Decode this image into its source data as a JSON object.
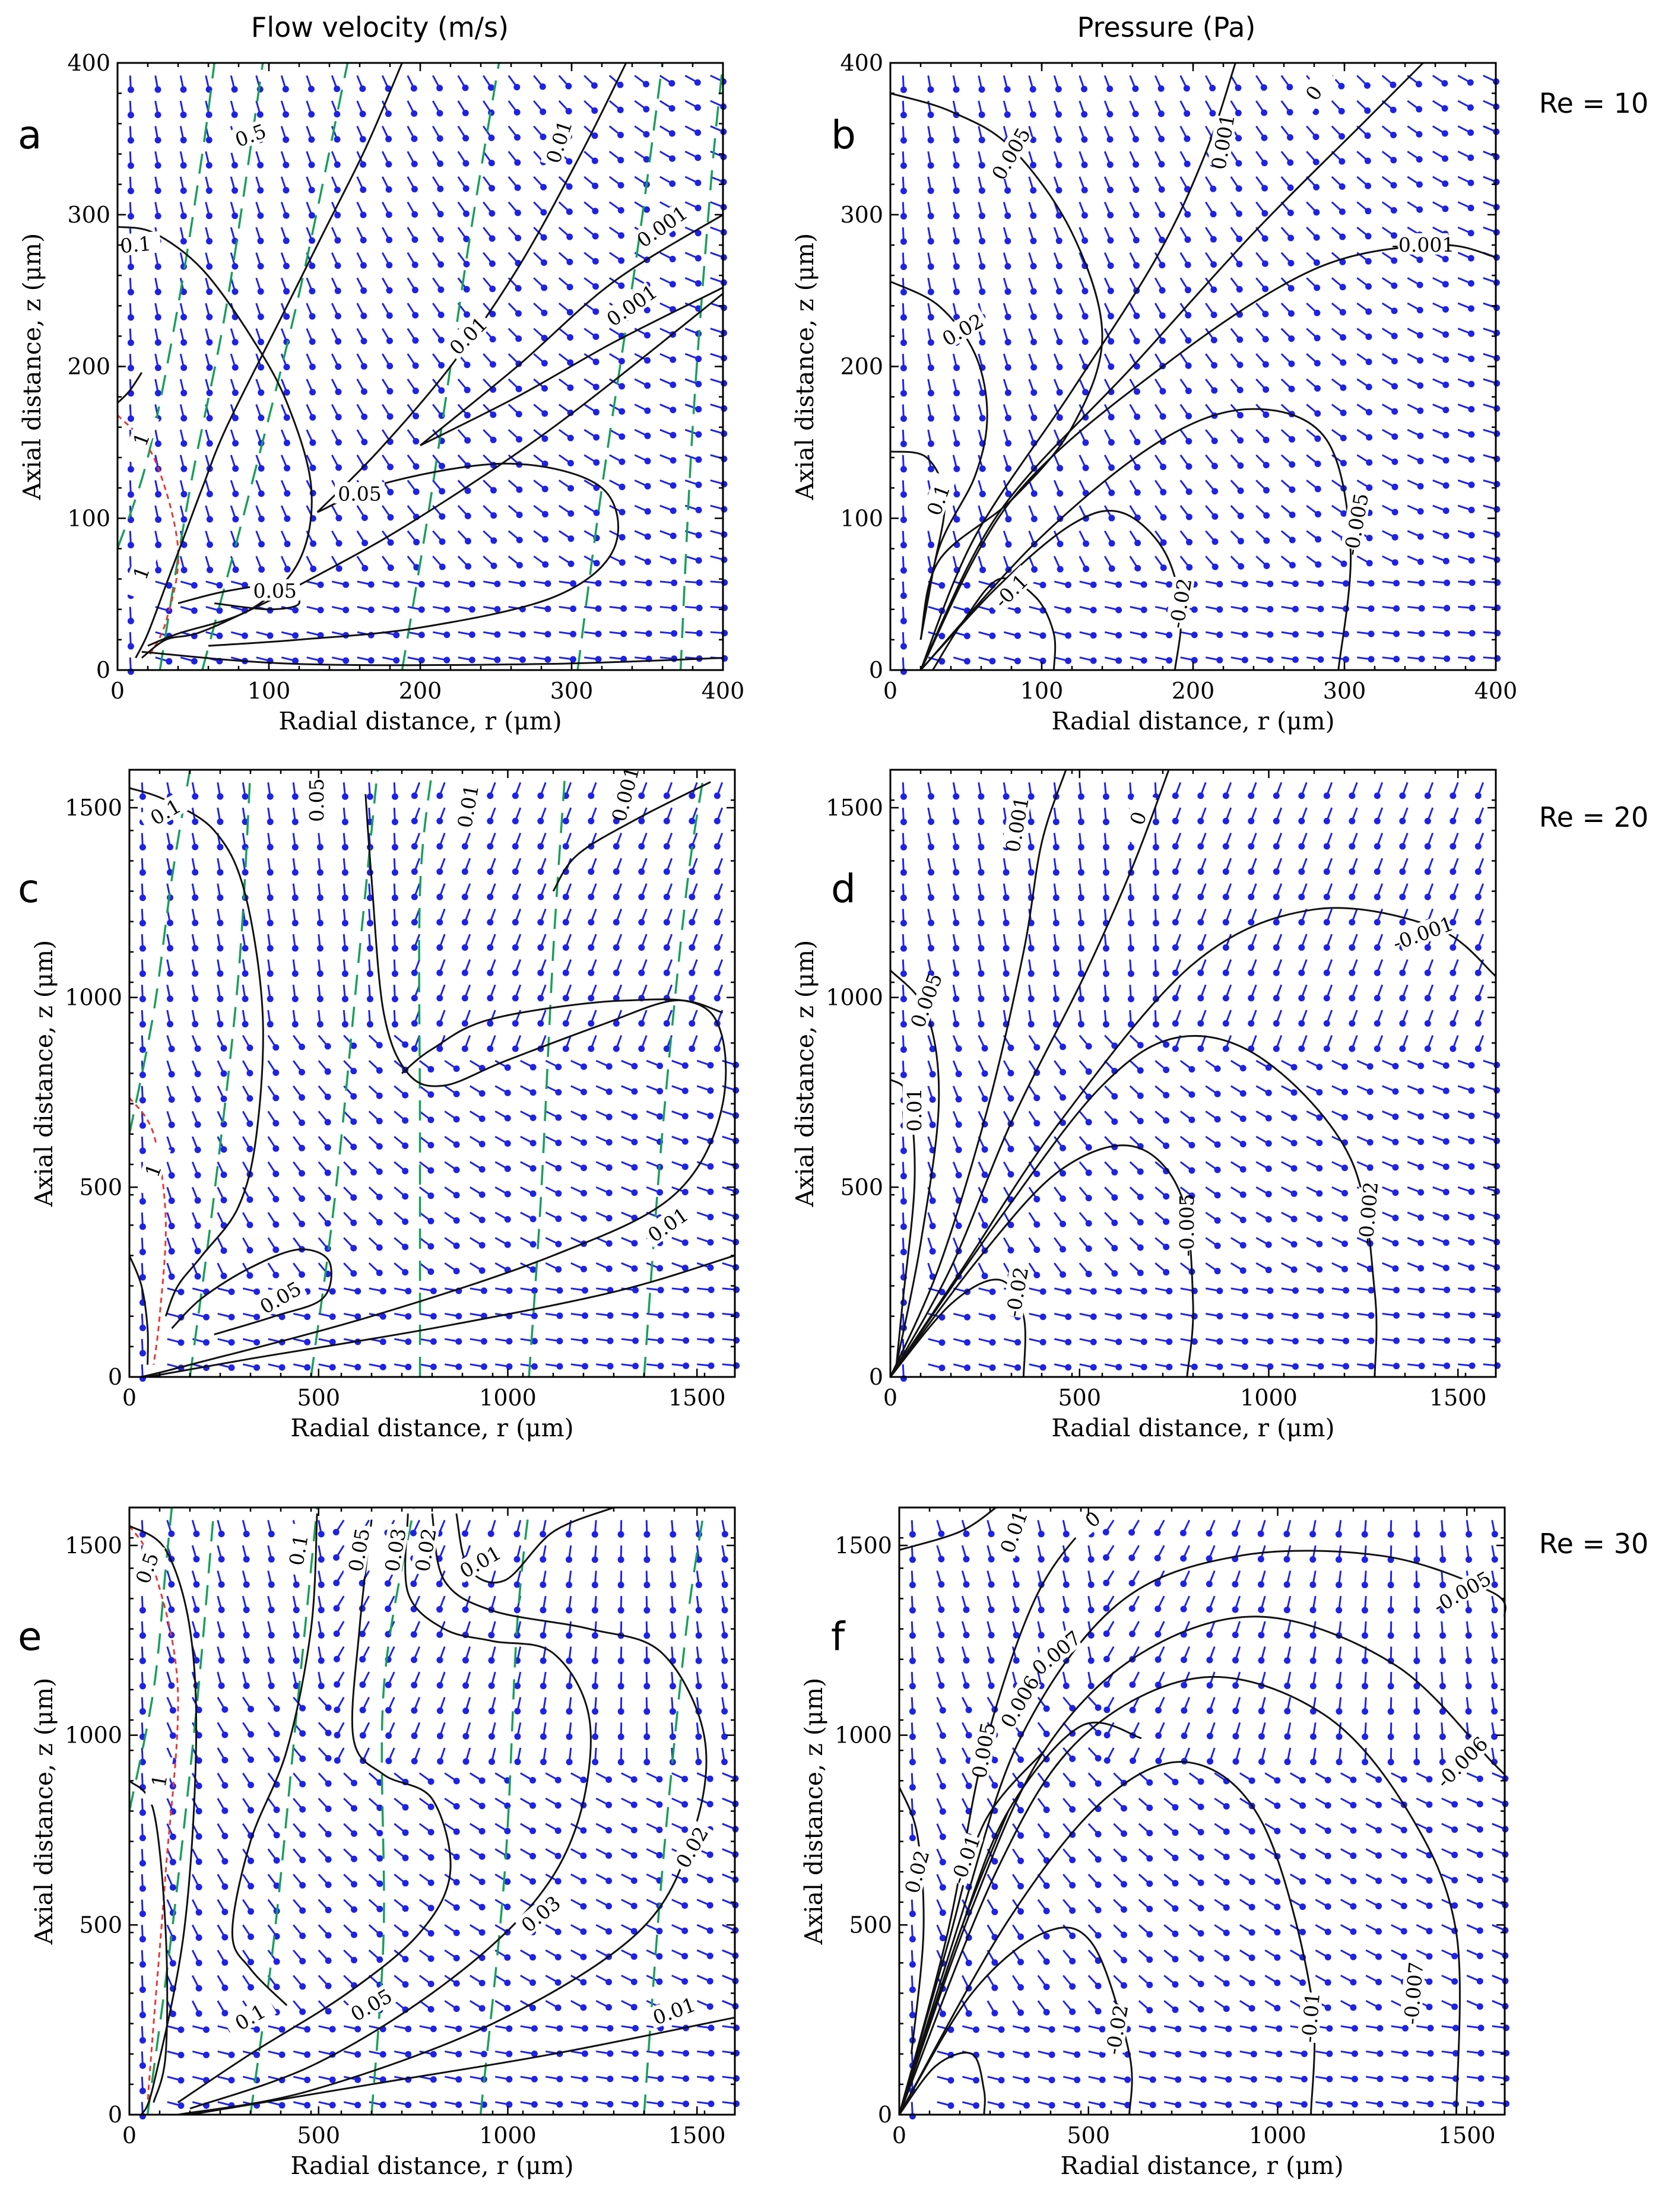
{
  "figure": {
    "column_titles": [
      "Flow velocity (m/s)",
      "Pressure (Pa)"
    ],
    "row_labels": [
      "Re = 10",
      "Re = 20",
      "Re = 30"
    ]
  },
  "colors": {
    "vectors": "#1e22e6",
    "contours": "#111111",
    "streamlines": "#1a9e5a",
    "separation_line": "#e53935"
  },
  "chart_data": [
    {
      "panel": "a",
      "type": "contour",
      "quantity": "Flow velocity (m/s)",
      "Re": 10,
      "xlabel": "Radial distance, r (μm)",
      "ylabel": "Axial distance, z (μm)",
      "xlim": [
        0,
        400
      ],
      "ylim": [
        0,
        400
      ],
      "xticks": [
        0,
        100,
        200,
        300,
        400
      ],
      "yticks": [
        0,
        100,
        200,
        300,
        400
      ],
      "contour_levels": [
        "1",
        "1",
        "0.5",
        "0.1",
        "0.05",
        "0.05",
        "0.01",
        "0.01",
        "0.001",
        "0.001"
      ],
      "vector_field": {
        "nx": 24,
        "ny": 24
      }
    },
    {
      "panel": "b",
      "type": "contour",
      "quantity": "Pressure (Pa)",
      "Re": 10,
      "xlabel": "Radial distance, r (μm)",
      "ylabel": "Axial distance, z (μm)",
      "xlim": [
        0,
        400
      ],
      "ylim": [
        0,
        400
      ],
      "xticks": [
        0,
        100,
        200,
        300,
        400
      ],
      "yticks": [
        0,
        100,
        200,
        300,
        400
      ],
      "contour_levels": [
        "0.005",
        "0.02",
        "0.1",
        "0.001",
        "0",
        "-0.001",
        "-0.005",
        "-0.02",
        "-0.1"
      ],
      "vector_field": {
        "nx": 24,
        "ny": 24
      }
    },
    {
      "panel": "c",
      "type": "contour",
      "quantity": "Flow velocity (m/s)",
      "Re": 20,
      "xlabel": "Radial distance, r (μm)",
      "ylabel": "Axial distance, z (μm)",
      "xlim": [
        0,
        1600
      ],
      "ylim": [
        0,
        1600
      ],
      "xticks": [
        0,
        500,
        1000,
        1500
      ],
      "yticks": [
        0,
        500,
        1000,
        1500
      ],
      "contour_levels": [
        "1",
        "0.1",
        "0.05",
        "0.05",
        "0.01",
        "0.001",
        "0.01"
      ],
      "vector_field": {
        "nx": 24,
        "ny": 24
      }
    },
    {
      "panel": "d",
      "type": "contour",
      "quantity": "Pressure (Pa)",
      "Re": 20,
      "xlabel": "Radial distance, r (μm)",
      "ylabel": "Axial distance, z (μm)",
      "xlim": [
        0,
        1600
      ],
      "ylim": [
        0,
        1600
      ],
      "xticks": [
        0,
        500,
        1000,
        1500
      ],
      "yticks": [
        0,
        500,
        1000,
        1500
      ],
      "contour_levels": [
        "0.001",
        "0",
        "-0.001",
        "0.005",
        "0.01",
        "-0.02",
        "-0.005",
        "-0.002"
      ],
      "vector_field": {
        "nx": 24,
        "ny": 24
      }
    },
    {
      "panel": "e",
      "type": "contour",
      "quantity": "Flow velocity (m/s)",
      "Re": 30,
      "xlabel": "Radial distance, r (μm)",
      "ylabel": "Axial distance, z (μm)",
      "xlim": [
        0,
        1600
      ],
      "ylim": [
        0,
        1600
      ],
      "xticks": [
        0,
        500,
        1000,
        1500
      ],
      "yticks": [
        0,
        500,
        1000,
        1500
      ],
      "contour_levels": [
        "0.5",
        "1",
        "0.1",
        "0.05",
        "0.03",
        "0.02",
        "0.01",
        "0.02",
        "0.03",
        "0.05",
        "0.1",
        "0.01"
      ],
      "vector_field": {
        "nx": 24,
        "ny": 24
      }
    },
    {
      "panel": "f",
      "type": "contour",
      "quantity": "Pressure (Pa)",
      "Re": 30,
      "xlabel": "Radial distance, r (μm)",
      "ylabel": "Axial distance, z (μm)",
      "xlim": [
        0,
        1600
      ],
      "ylim": [
        0,
        1600
      ],
      "xticks": [
        0,
        500,
        1000,
        1500
      ],
      "yticks": [
        0,
        500,
        1000,
        1500
      ],
      "contour_levels": [
        "0.01",
        "0",
        "-0.005",
        "0.007",
        "0.006",
        "0.005",
        "-0.006",
        "0.02",
        "-0.01",
        "-0.02",
        "-0.01",
        "-0.007"
      ],
      "vector_field": {
        "nx": 24,
        "ny": 24
      }
    }
  ]
}
